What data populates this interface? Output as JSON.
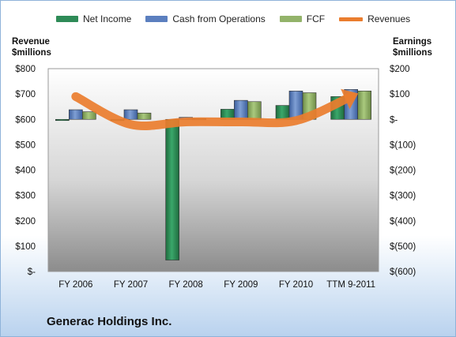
{
  "legend": [
    {
      "label": "Net Income",
      "color": "#2e8b57",
      "kind": "bar"
    },
    {
      "label": "Cash from Operations",
      "color": "#5b7fbf",
      "kind": "bar"
    },
    {
      "label": "FCF",
      "color": "#93b36a",
      "kind": "bar"
    },
    {
      "label": "Revenues",
      "color": "#ea7d2e",
      "kind": "line"
    }
  ],
  "left_axis_title": [
    "Revenue",
    "$millions"
  ],
  "right_axis_title": [
    "Earnings",
    "$millions"
  ],
  "company": "Generac Holdings Inc.",
  "chart_data": {
    "type": "bar",
    "categories": [
      "FY 2006",
      "FY 2007",
      "FY 2008",
      "FY 2009",
      "FY 2010",
      "TTM 9-2011"
    ],
    "left_axis": {
      "ticks": [
        "$-",
        "$100",
        "$200",
        "$300",
        "$400",
        "$500",
        "$600",
        "$700",
        "$800"
      ],
      "ylim": [
        0,
        800
      ]
    },
    "right_axis": {
      "ticks": [
        "$(600)",
        "$(500)",
        "$(400)",
        "$(300)",
        "$(200)",
        "$(100)",
        "$-",
        "$100",
        "$200"
      ],
      "ylim": [
        -600,
        200
      ]
    },
    "series": [
      {
        "name": "Net Income",
        "axis": "right",
        "values": [
          -3,
          -5,
          -555,
          40,
          55,
          90
        ]
      },
      {
        "name": "Cash from Operations",
        "axis": "right",
        "values": [
          38,
          38,
          8,
          75,
          112,
          118
        ]
      },
      {
        "name": "FCF",
        "axis": "right",
        "values": [
          30,
          25,
          3,
          70,
          105,
          112
        ]
      },
      {
        "name": "Revenues",
        "axis": "left",
        "type": "line",
        "values": [
          690,
          580,
          590,
          590,
          595,
          690
        ]
      }
    ]
  }
}
